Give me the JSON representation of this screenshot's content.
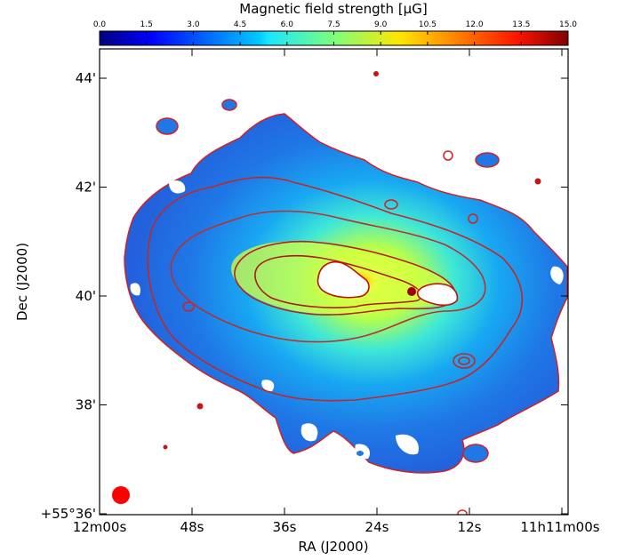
{
  "chart_data": {
    "type": "heatmap",
    "colorbar": {
      "title": "Magnetic field strength [μG]",
      "min": 0.0,
      "max": 15.0,
      "ticks": [
        "0.0",
        "1.5",
        "3.0",
        "4.5",
        "6.0",
        "7.5",
        "9.0",
        "10.5",
        "12.0",
        "13.5",
        "15.0"
      ],
      "colormap": "jet"
    },
    "xlabel": "RA (J2000)",
    "ylabel": "Dec (J2000)",
    "xticks": [
      "12m00s",
      "48s",
      "36s",
      "24s",
      "12s",
      "11h11m00s"
    ],
    "yticks": [
      "+55°36'",
      "38'",
      "40'",
      "42'",
      "44'"
    ],
    "contour_color": "#d42020",
    "beam_color": "#ff0000",
    "grid": false,
    "features": [
      {
        "kind": "blank core region (east)",
        "value": null
      },
      {
        "kind": "blank core region (west)",
        "value": null
      },
      {
        "kind": "peak between cores",
        "value": 15.0
      },
      {
        "kind": "ridge level",
        "value": 9.0
      },
      {
        "kind": "disk level",
        "value": 6.0
      },
      {
        "kind": "outskirts level",
        "value": 3.0
      }
    ]
  }
}
